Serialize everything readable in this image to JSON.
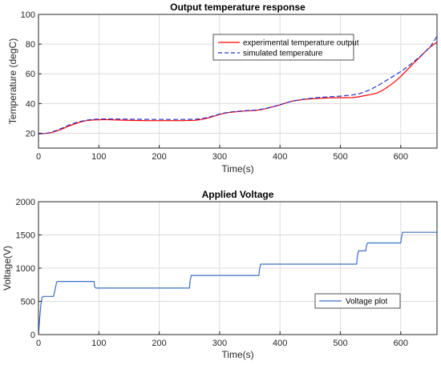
{
  "chart_data": [
    {
      "type": "line",
      "title": "Output temperature response",
      "xlabel": "Time(s)",
      "ylabel": "Temperature (degC)",
      "xlim": [
        0,
        660
      ],
      "ylim": [
        10,
        100
      ],
      "xticks": [
        0,
        100,
        200,
        300,
        400,
        500,
        600
      ],
      "yticks": [
        20,
        40,
        60,
        80,
        100
      ],
      "grid": true,
      "legend": "top-right",
      "series": [
        {
          "name": "experimental temperature output",
          "color": "#ff0000",
          "style": "solid",
          "x": [
            0,
            10,
            20,
            30,
            40,
            50,
            60,
            70,
            80,
            90,
            100,
            110,
            120,
            140,
            160,
            180,
            200,
            220,
            240,
            260,
            270,
            280,
            290,
            300,
            310,
            320,
            340,
            360,
            370,
            380,
            390,
            400,
            410,
            420,
            440,
            460,
            480,
            500,
            520,
            530,
            540,
            550,
            560,
            570,
            580,
            590,
            600,
            610,
            620,
            630,
            640,
            650,
            660
          ],
          "y": [
            19.8,
            19.8,
            20.3,
            21.5,
            23.0,
            24.8,
            26.3,
            27.6,
            28.5,
            28.9,
            29.1,
            29.2,
            29.0,
            28.8,
            28.6,
            28.5,
            28.5,
            28.5,
            28.5,
            28.7,
            29.3,
            30.2,
            31.4,
            32.7,
            33.6,
            34.2,
            34.9,
            35.4,
            36.0,
            36.9,
            38.0,
            39.1,
            40.4,
            41.6,
            42.8,
            43.4,
            43.8,
            43.9,
            44.0,
            44.5,
            45.3,
            46.0,
            47.0,
            48.9,
            51.6,
            54.6,
            58.2,
            62.4,
            66.6,
            70.5,
            74.7,
            78.5,
            81.2
          ]
        },
        {
          "name": "simulated temperature",
          "color": "#2233cc",
          "style": "dashed",
          "x": [
            0,
            10,
            20,
            30,
            40,
            50,
            60,
            70,
            80,
            90,
            100,
            110,
            120,
            140,
            160,
            180,
            200,
            220,
            240,
            260,
            270,
            280,
            290,
            300,
            310,
            320,
            340,
            360,
            370,
            380,
            390,
            400,
            410,
            420,
            440,
            460,
            480,
            500,
            520,
            530,
            540,
            550,
            560,
            570,
            580,
            590,
            600,
            610,
            620,
            630,
            640,
            650,
            660
          ],
          "y": [
            19.6,
            19.7,
            20.5,
            21.9,
            23.6,
            25.4,
            26.9,
            28.0,
            28.8,
            29.3,
            29.5,
            29.6,
            29.6,
            29.5,
            29.4,
            29.3,
            29.3,
            29.3,
            29.3,
            29.4,
            29.8,
            30.6,
            31.7,
            32.9,
            33.8,
            34.4,
            35.1,
            35.6,
            36.2,
            37.1,
            38.1,
            39.2,
            40.4,
            41.7,
            43.0,
            43.9,
            44.5,
            45.0,
            45.8,
            46.5,
            47.8,
            49.5,
            51.6,
            54.0,
            56.5,
            59.0,
            61.5,
            64.4,
            67.6,
            71.0,
            74.6,
            78.8,
            85.3
          ]
        }
      ]
    },
    {
      "type": "line",
      "title": "Applied Voltage",
      "xlabel": "Time(s)",
      "ylabel": "Voltage(V)",
      "xlim": [
        0,
        660
      ],
      "ylim": [
        0,
        2000
      ],
      "xticks": [
        0,
        100,
        200,
        300,
        400,
        500,
        600
      ],
      "yticks": [
        0,
        500,
        1000,
        1500,
        2000
      ],
      "grid": true,
      "legend": "middle-right",
      "series": [
        {
          "name": "Voltage plot",
          "color": "#3a6fc4",
          "style": "solid",
          "x": [
            0,
            2,
            4,
            6,
            8,
            10,
            25,
            28,
            30,
            32,
            92,
            93,
            95,
            250,
            251,
            253,
            365,
            366,
            368,
            527,
            528,
            530,
            542,
            543,
            545,
            600,
            601,
            603,
            660
          ],
          "y": [
            0,
            250,
            450,
            560,
            575,
            575,
            575,
            700,
            790,
            800,
            800,
            720,
            700,
            700,
            800,
            890,
            890,
            980,
            1060,
            1060,
            1170,
            1260,
            1260,
            1330,
            1380,
            1380,
            1460,
            1540,
            1540
          ]
        }
      ]
    }
  ]
}
